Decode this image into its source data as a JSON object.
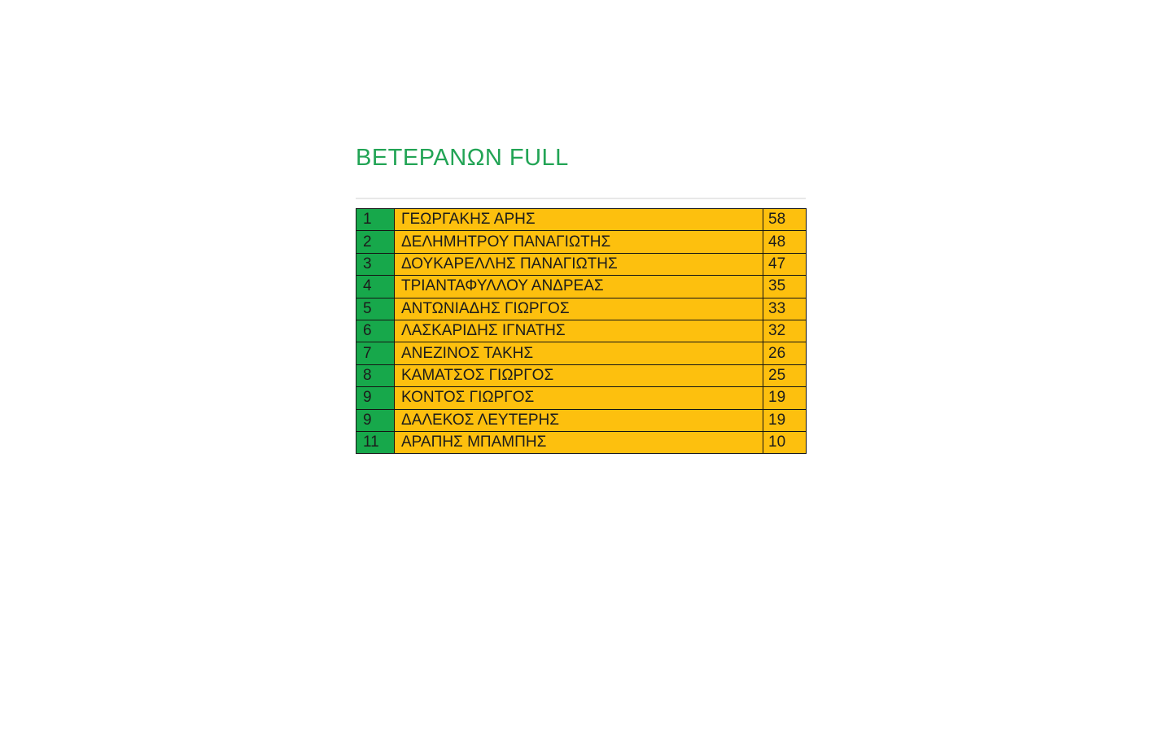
{
  "page": {
    "title": "ΒΕΤΕΡΑΝΩΝ FULL",
    "background": "#FFFFFF",
    "title_color": "#22A455"
  },
  "colors": {
    "rank_cell_bg": "#17A84B",
    "data_cell_bg": "#FDC00E",
    "border": "#141414",
    "text": "#1C1C1C",
    "divider": "#E8E8E8"
  },
  "table": {
    "rows": [
      {
        "rank": "1",
        "name": "ΓΕΩΡΓΑΚΗΣ ΑΡΗΣ",
        "points": "58"
      },
      {
        "rank": "2",
        "name": "ΔΕΛΗΜΗΤΡΟΥ ΠΑΝΑΓΙΩΤΗΣ",
        "points": "48"
      },
      {
        "rank": "3",
        "name": "ΔΟΥΚΑΡΕΛΛΗΣ ΠΑΝΑΓΙΩΤΗΣ",
        "points": "47"
      },
      {
        "rank": "4",
        "name": "ΤΡΙΑΝΤΑΦΥΛΛΟΥ ΑΝΔΡΕΑΣ",
        "points": "35"
      },
      {
        "rank": "5",
        "name": "ΑΝΤΩΝΙΑΔΗΣ ΓΙΩΡΓΟΣ",
        "points": "33"
      },
      {
        "rank": "6",
        "name": "ΛΑΣΚΑΡΙΔΗΣ ΙΓΝΑΤΗΣ",
        "points": "32"
      },
      {
        "rank": "7",
        "name": "ΑΝΕΖΙΝΟΣ ΤΑΚΗΣ",
        "points": "26"
      },
      {
        "rank": "8",
        "name": "ΚΑΜΑΤΣΟΣ ΓΙΩΡΓΟΣ",
        "points": "25"
      },
      {
        "rank": "9",
        "name": "ΚΟΝΤΟΣ ΓΙΩΡΓΟΣ",
        "points": "19"
      },
      {
        "rank": "9",
        "name": "ΔΑΛΕΚΟΣ ΛΕΥΤΕΡΗΣ",
        "points": "19"
      },
      {
        "rank": "11",
        "name": "ΑΡΑΠΗΣ ΜΠΑΜΠΗΣ",
        "points": "10"
      }
    ]
  }
}
